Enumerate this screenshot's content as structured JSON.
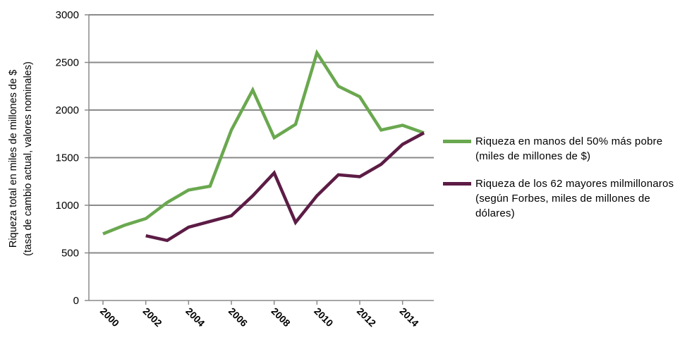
{
  "chart_data": {
    "type": "line",
    "title": "",
    "xlabel": "",
    "ylabel": [
      "Riqueza total en miles de millones de $",
      "(tasa de cambio actual, valores nominales)"
    ],
    "x_tick_labels": [
      "2000",
      "2002",
      "2004",
      "2006",
      "2008",
      "2010",
      "2012",
      "2014"
    ],
    "y_tick_labels": [
      "0",
      "500",
      "1000",
      "1500",
      "2000",
      "2500",
      "3000"
    ],
    "xlim": [
      2000,
      2015
    ],
    "ylim": [
      0,
      3000
    ],
    "grid": "horizontal",
    "legend_position": "right",
    "series": [
      {
        "name": "Riqueza en manos del 50% más pobre (miles de millones de $)",
        "color": "#6aa84f",
        "x": [
          2000,
          2001,
          2002,
          2003,
          2004,
          2005,
          2006,
          2007,
          2008,
          2009,
          2010,
          2011,
          2012,
          2013,
          2014,
          2015
        ],
        "values": [
          700,
          790,
          860,
          1030,
          1160,
          1200,
          1790,
          2210,
          1710,
          1850,
          2600,
          2250,
          2140,
          1790,
          1840,
          1760
        ]
      },
      {
        "name": "Riqueza de los 62 mayores milmillonaros (según Forbes, miles de millones de dólares)",
        "color": "#5c1c45",
        "x": [
          2002,
          2003,
          2004,
          2005,
          2006,
          2007,
          2008,
          2009,
          2010,
          2011,
          2012,
          2013,
          2014,
          2015
        ],
        "values": [
          680,
          630,
          770,
          830,
          890,
          1100,
          1340,
          820,
          1100,
          1320,
          1300,
          1430,
          1640,
          1760
        ]
      }
    ]
  }
}
